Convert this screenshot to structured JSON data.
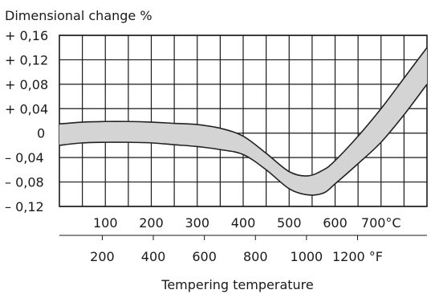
{
  "chart_data": {
    "type": "area",
    "title": "Dimensional change %",
    "xlabel": "Tempering temperature",
    "ylabel": "Dimensional change %",
    "x_unit_primary": "°C",
    "x_unit_secondary": "°F",
    "xlim": [
      0,
      800
    ],
    "ylim": [
      -0.12,
      0.16
    ],
    "grid": true,
    "y_ticks": [
      {
        "value": 0.16,
        "label": "+ 0,16"
      },
      {
        "value": 0.12,
        "label": "+ 0,12"
      },
      {
        "value": 0.08,
        "label": "+ 0,08"
      },
      {
        "value": 0.04,
        "label": "+ 0,04"
      },
      {
        "value": 0,
        "label": "0"
      },
      {
        "value": -0.04,
        "label": "– 0,04"
      },
      {
        "value": -0.08,
        "label": "– 0,08"
      },
      {
        "value": -0.12,
        "label": "– 0,12"
      }
    ],
    "x_ticks_celsius": [
      {
        "value": 100,
        "label": "100"
      },
      {
        "value": 200,
        "label": "200"
      },
      {
        "value": 300,
        "label": "300"
      },
      {
        "value": 400,
        "label": "400"
      },
      {
        "value": 500,
        "label": "500"
      },
      {
        "value": 600,
        "label": "600"
      },
      {
        "value": 700,
        "label": "700°C"
      }
    ],
    "x_ticks_fahrenheit": [
      {
        "value": 200,
        "label": "200"
      },
      {
        "value": 400,
        "label": "400"
      },
      {
        "value": 600,
        "label": "600"
      },
      {
        "value": 800,
        "label": "800"
      },
      {
        "value": 1000,
        "label": "1000"
      },
      {
        "value": 1200,
        "label": "1200 °F"
      }
    ],
    "series": [
      {
        "role": "upper_bound",
        "x": [
          0,
          50,
          100,
          150,
          200,
          250,
          300,
          350,
          400,
          450,
          500,
          540,
          575,
          600,
          650,
          700,
          750,
          800
        ],
        "values": [
          0.015,
          0.018,
          0.019,
          0.019,
          0.018,
          0.016,
          0.014,
          0.008,
          -0.005,
          -0.033,
          -0.063,
          -0.07,
          -0.06,
          -0.045,
          -0.005,
          0.04,
          0.09,
          0.14
        ]
      },
      {
        "role": "lower_bound",
        "x": [
          0,
          50,
          100,
          150,
          200,
          250,
          300,
          350,
          400,
          450,
          500,
          540,
          575,
          600,
          650,
          700,
          750,
          800
        ],
        "values": [
          -0.02,
          -0.016,
          -0.015,
          -0.015,
          -0.016,
          -0.019,
          -0.022,
          -0.027,
          -0.035,
          -0.06,
          -0.091,
          -0.101,
          -0.098,
          -0.083,
          -0.05,
          -0.015,
          0.03,
          0.08
        ]
      }
    ],
    "band_fill": "#d4d4d4",
    "line_color": "#222222"
  }
}
